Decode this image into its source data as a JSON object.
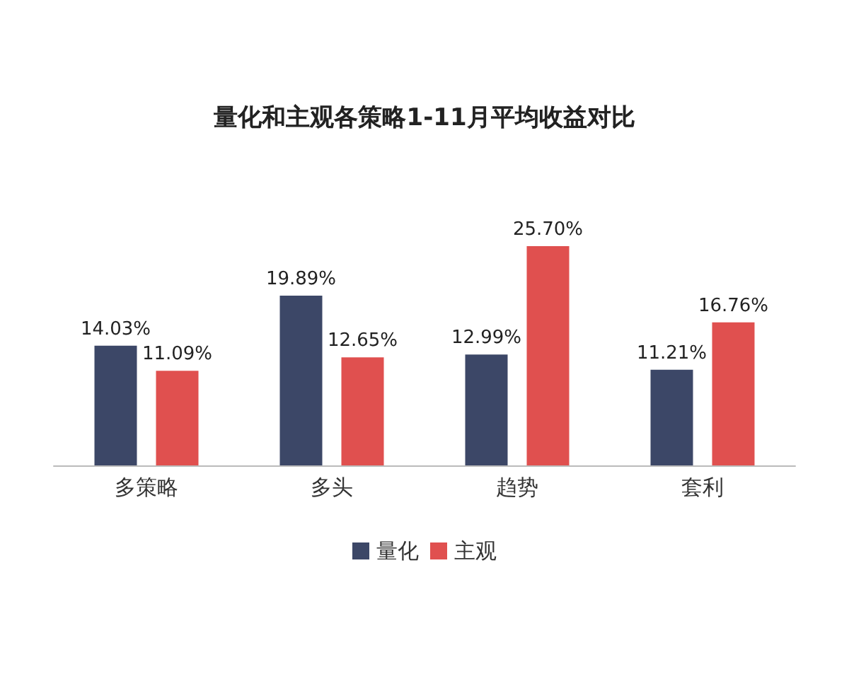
{
  "chart_data": {
    "type": "bar",
    "title": "量化和主观各策略1-11月平均收益对比",
    "categories": [
      "多策略",
      "多头",
      "趋势",
      "套利"
    ],
    "series": [
      {
        "name": "量化",
        "color": "#3c4767",
        "values": [
          14.03,
          19.89,
          12.99,
          11.21
        ],
        "value_labels": [
          "14.03%",
          "19.89%",
          "12.99%",
          "11.21%"
        ]
      },
      {
        "name": "主观",
        "color": "#e0504f",
        "values": [
          11.09,
          12.65,
          25.7,
          16.76
        ],
        "value_labels": [
          "11.09%",
          "12.65%",
          "25.70%",
          "16.76%"
        ]
      }
    ],
    "legend": "bottom"
  }
}
